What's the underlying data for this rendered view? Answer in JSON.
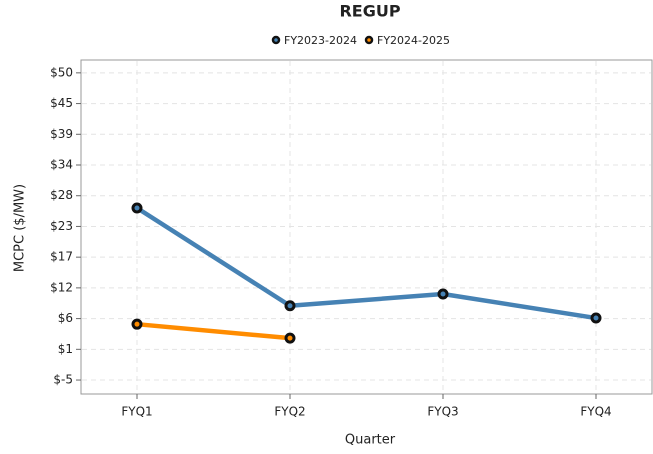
{
  "chart_data": {
    "type": "line",
    "title": "REGUP",
    "x_label": "Quarter",
    "y_label": "MCPC ($/MW)",
    "categories": [
      "FYQ1",
      "FYQ2",
      "FYQ3",
      "FYQ4"
    ],
    "series": [
      {
        "name": "FY2023-2024",
        "color": "#4682b4",
        "values": [
          25.8,
          8.3,
          10.4,
          6.1
        ]
      },
      {
        "name": "FY2024-2025",
        "color": "#ff8c00",
        "values": [
          5.0,
          2.5,
          null,
          null
        ]
      }
    ],
    "ylim": [
      -7.5,
      52.3
    ],
    "yticks": [
      {
        "value": 50,
        "label": "$50"
      },
      {
        "value": 44.5,
        "label": "$45"
      },
      {
        "value": 39,
        "label": "$39"
      },
      {
        "value": 33.5,
        "label": "$34"
      },
      {
        "value": 28,
        "label": "$28"
      },
      {
        "value": 22.5,
        "label": "$23"
      },
      {
        "value": 17,
        "label": "$17"
      },
      {
        "value": 11.5,
        "label": "$12"
      },
      {
        "value": 6,
        "label": "$6"
      },
      {
        "value": 0.5,
        "label": "$1"
      },
      {
        "value": -5,
        "label": "$-5"
      }
    ],
    "grid": true,
    "legend": "top"
  }
}
